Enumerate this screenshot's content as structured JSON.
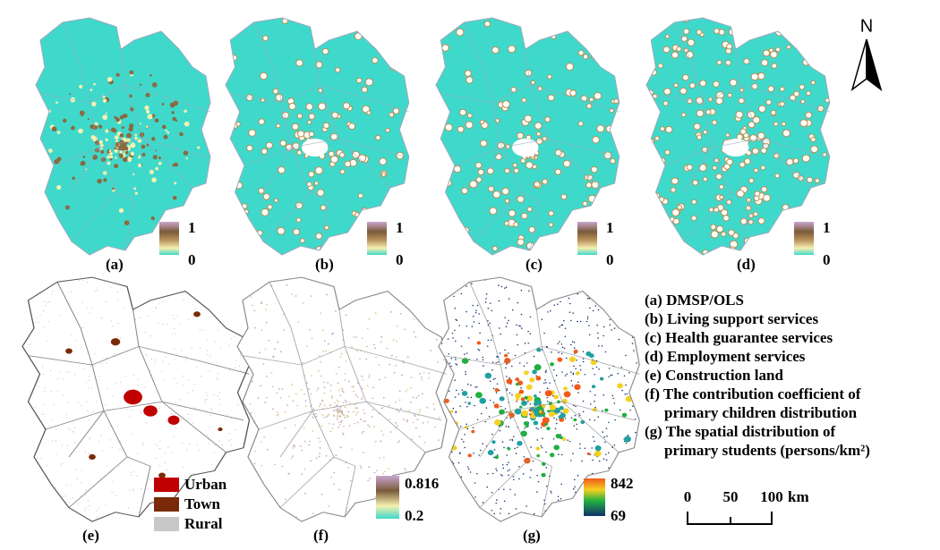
{
  "north": "N",
  "top_panels": [
    {
      "label": "(a)",
      "legend_max": 1,
      "legend_min": 0
    },
    {
      "label": "(b)",
      "legend_max": 1,
      "legend_min": 0
    },
    {
      "label": "(c)",
      "legend_max": 1,
      "legend_min": 0
    },
    {
      "label": "(d)",
      "legend_max": 1,
      "legend_min": 0
    }
  ],
  "panel_e": {
    "label": "(e)",
    "legend": [
      "Urban",
      "Town",
      "Rural"
    ]
  },
  "panel_f": {
    "label": "(f)",
    "legend_max": 0.816,
    "legend_min": 0.2
  },
  "panel_g": {
    "label": "(g)",
    "legend_max": 842,
    "legend_min": 69
  },
  "captions": [
    "(a) DMSP/OLS",
    "(b) Living support services",
    "(c) Health guarantee services",
    "(d) Employment services",
    "(e) Construction land",
    "(f) The contribution coefficient of",
    "primary children distribution",
    "(g) The spatial distribution of",
    "primary students (persons/km²)"
  ],
  "scale_bar": {
    "ticks": [
      0,
      50,
      100
    ],
    "unit": "km"
  }
}
